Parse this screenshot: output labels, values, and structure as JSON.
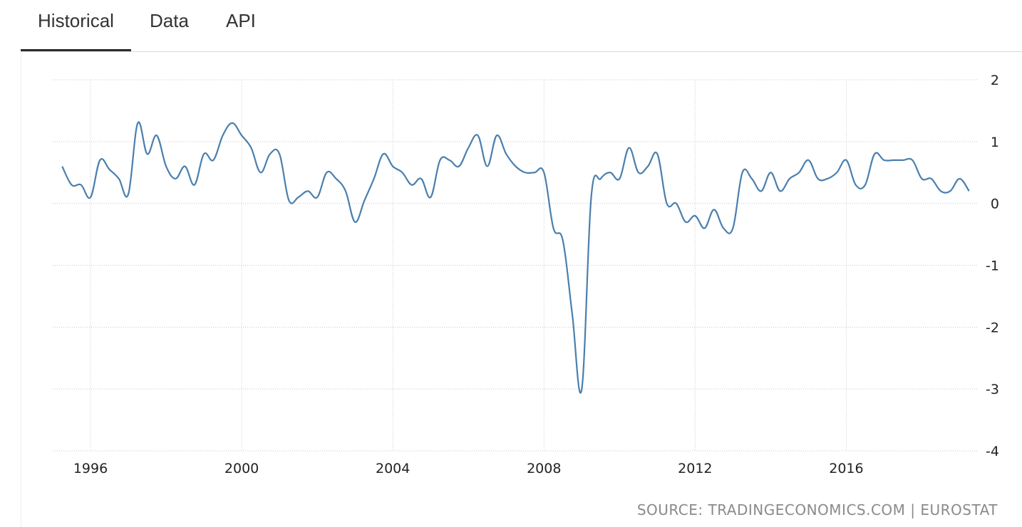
{
  "tabs": [
    {
      "label": "Historical",
      "active": true
    },
    {
      "label": "Data",
      "active": false
    },
    {
      "label": "API",
      "active": false
    }
  ],
  "source_text": "SOURCE: TRADINGECONOMICS.COM | EUROSTAT",
  "colors": {
    "line": "#4a7fae",
    "grid": "#c8c8c8",
    "text": "#222222",
    "source": "#8a8a8a"
  },
  "chart_data": {
    "type": "line",
    "title": "",
    "xlabel": "",
    "ylabel": "",
    "ylim": [
      -4,
      2
    ],
    "xlim": [
      1995.0,
      2019.5
    ],
    "y_ticks": [
      2,
      1,
      0,
      -1,
      -2,
      -3,
      -4
    ],
    "x_ticks": [
      1996,
      2000,
      2004,
      2008,
      2012,
      2016
    ],
    "y_axis_side": "right",
    "grid": true,
    "series": [
      {
        "x": [
          1995.25,
          1995.5,
          1995.75,
          1996.0,
          1996.25,
          1996.5,
          1996.75,
          1997.0,
          1997.25,
          1997.5,
          1997.75,
          1998.0,
          1998.25,
          1998.5,
          1998.75,
          1999.0,
          1999.25,
          1999.5,
          1999.75,
          2000.0,
          2000.25,
          2000.5,
          2000.75,
          2001.0,
          2001.25,
          2001.5,
          2001.75,
          2002.0,
          2002.25,
          2002.5,
          2002.75,
          2003.0,
          2003.25,
          2003.5,
          2003.75,
          2004.0,
          2004.25,
          2004.5,
          2004.75,
          2005.0,
          2005.25,
          2005.5,
          2005.75,
          2006.0,
          2006.25,
          2006.5,
          2006.75,
          2007.0,
          2007.25,
          2007.5,
          2007.75,
          2008.0,
          2008.25,
          2008.5,
          2008.75,
          2009.0,
          2009.25,
          2009.5,
          2009.75,
          2010.0,
          2010.25,
          2010.5,
          2010.75,
          2011.0,
          2011.25,
          2011.5,
          2011.75,
          2012.0,
          2012.25,
          2012.5,
          2012.75,
          2013.0,
          2013.25,
          2013.5,
          2013.75,
          2014.0,
          2014.25,
          2014.5,
          2014.75,
          2015.0,
          2015.25,
          2015.5,
          2015.75,
          2016.0,
          2016.25,
          2016.5,
          2016.75,
          2017.0,
          2017.25,
          2017.5,
          2017.75,
          2018.0,
          2018.25,
          2018.5,
          2018.75,
          2019.0,
          2019.25
        ],
        "values": [
          0.6,
          0.3,
          0.3,
          0.1,
          0.7,
          0.55,
          0.4,
          0.15,
          1.3,
          0.8,
          1.1,
          0.6,
          0.4,
          0.6,
          0.3,
          0.8,
          0.7,
          1.1,
          1.3,
          1.1,
          0.9,
          0.5,
          0.8,
          0.8,
          0.05,
          0.1,
          0.2,
          0.1,
          0.5,
          0.4,
          0.2,
          -0.3,
          0.05,
          0.4,
          0.8,
          0.6,
          0.5,
          0.3,
          0.4,
          0.1,
          0.7,
          0.7,
          0.6,
          0.9,
          1.1,
          0.6,
          1.1,
          0.8,
          0.6,
          0.5,
          0.5,
          0.5,
          -0.4,
          -0.6,
          -1.8,
          -3.0,
          0.1,
          0.4,
          0.5,
          0.4,
          0.9,
          0.5,
          0.6,
          0.8,
          0.0,
          0.0,
          -0.3,
          -0.2,
          -0.4,
          -0.1,
          -0.4,
          -0.4,
          0.5,
          0.4,
          0.2,
          0.5,
          0.2,
          0.4,
          0.5,
          0.7,
          0.4,
          0.4,
          0.5,
          0.7,
          0.3,
          0.3,
          0.8,
          0.7,
          0.7,
          0.7,
          0.7,
          0.4,
          0.4,
          0.2,
          0.2,
          0.4,
          0.2
        ]
      }
    ]
  }
}
